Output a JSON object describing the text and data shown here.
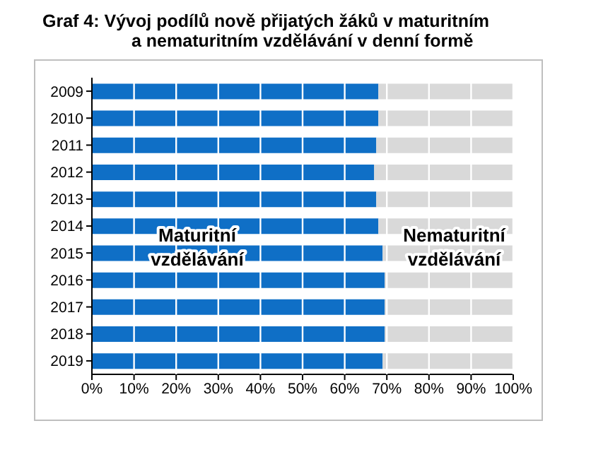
{
  "chart_data": {
    "type": "bar",
    "orientation": "horizontal",
    "stacked": true,
    "title": "Graf 4: Vývoj podílů nově přijatých žáků v maturitním\na nematuritním vzdělávání v denní formě",
    "categories": [
      "2009",
      "2010",
      "2011",
      "2012",
      "2013",
      "2014",
      "2015",
      "2016",
      "2017",
      "2018",
      "2019"
    ],
    "series": [
      {
        "color": "#0f6fc6",
        "values": [
          68,
          68,
          67.5,
          67,
          67.5,
          68,
          69,
          69.5,
          69.5,
          69.5,
          69
        ]
      },
      {
        "color": "#d9d9d9",
        "values": [
          32,
          32,
          32.5,
          33,
          32.5,
          32,
          31,
          30.5,
          30.5,
          30.5,
          31
        ]
      }
    ],
    "xlim": [
      0,
      100
    ],
    "xticks": [
      {
        "value": 0,
        "label": "0%"
      },
      {
        "value": 10,
        "label": "10%"
      },
      {
        "value": 20,
        "label": "20%"
      },
      {
        "value": 30,
        "label": "30%"
      },
      {
        "value": 40,
        "label": "40%"
      },
      {
        "value": 50,
        "label": "50%"
      },
      {
        "value": 60,
        "label": "60%"
      },
      {
        "value": 70,
        "label": "70%"
      },
      {
        "value": 80,
        "label": "80%"
      },
      {
        "value": 90,
        "label": "90%"
      },
      {
        "value": 100,
        "label": "100%"
      }
    ],
    "grid": "x",
    "annotations": [
      {
        "text": "Maturitní\nvzdělávání",
        "x": 25,
        "y": "2015"
      },
      {
        "text": "Nematuritní\nvzdělávání",
        "x": 86,
        "y": "2015"
      }
    ]
  }
}
